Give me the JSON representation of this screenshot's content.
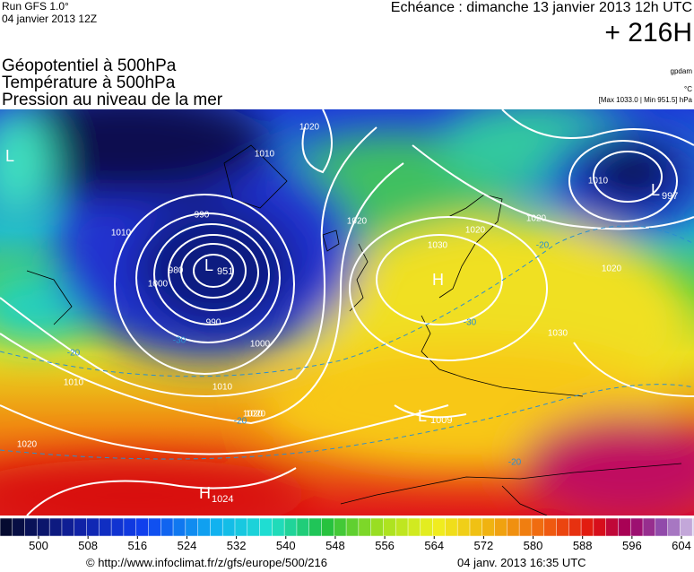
{
  "header": {
    "run": "Run GFS 1.0°",
    "date": "04 janvier 2013 12Z",
    "echeance": "Echéance : dimanche 13 janvier 2013 12h UTC",
    "lead": "+ 216H"
  },
  "legend": {
    "fields": [
      "Géopotentiel à 500hPa",
      "Température à 500hPa",
      "Pression au niveau de la mer"
    ],
    "units": [
      "gpdam",
      "°C",
      "[Max 1033.0 | Min 951.5] hPa"
    ]
  },
  "map": {
    "centers": [
      {
        "letter": "L",
        "value": "951"
      },
      {
        "letter": "L",
        "value": "997"
      },
      {
        "letter": "H",
        "value": "1024"
      },
      {
        "letter": "L",
        "value": "1009"
      },
      {
        "letter": "H"
      },
      {
        "letter": "L"
      }
    ],
    "isobar_labels": [
      "1020",
      "1010",
      "990",
      "980",
      "1000",
      "990",
      "1000",
      "1010",
      "1020",
      "1010",
      "1020",
      "1030",
      "1020",
      "1030",
      "1020",
      "1010",
      "1020",
      "1020",
      "1010",
      "1020"
    ],
    "temperature_labels": [
      "-20",
      "-30",
      "-30",
      "-20",
      "-20",
      "-20"
    ]
  },
  "colorbar": {
    "ticks": [
      500,
      508,
      516,
      524,
      532,
      540,
      548,
      556,
      564,
      572,
      580,
      588,
      596,
      604
    ]
  },
  "footer": {
    "source": "© http://www.infoclimat.fr/z/gfs/europe/500/216",
    "generated": "04 janv. 2013 16:35 UTC"
  }
}
